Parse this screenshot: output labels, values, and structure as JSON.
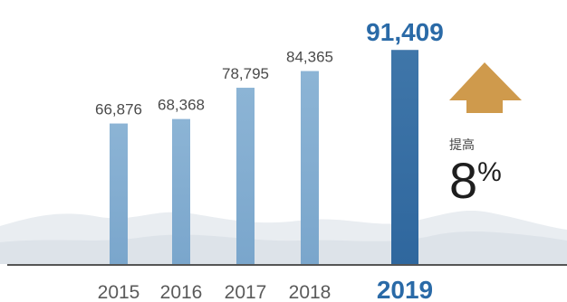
{
  "chart_data": {
    "type": "bar",
    "categories": [
      "2015",
      "2016",
      "2017",
      "2018",
      "2019"
    ],
    "values": [
      66876,
      68368,
      78795,
      84365,
      91409
    ],
    "value_labels": [
      "66,876",
      "68,368",
      "78,795",
      "84,365",
      "91,409"
    ],
    "highlight_category": "2019",
    "ylim": [
      20000,
      96000
    ],
    "grid": false,
    "axis_color": "#555555",
    "bar_color": "#8fb6d6",
    "highlight_color": "#3f78aa",
    "highlight_text_color": "#2a6aa7",
    "annotation": {
      "label": "提高",
      "value": "8",
      "unit": "%",
      "icon": "up-arrow-icon",
      "arrow_color": "#cf9a4c"
    }
  }
}
